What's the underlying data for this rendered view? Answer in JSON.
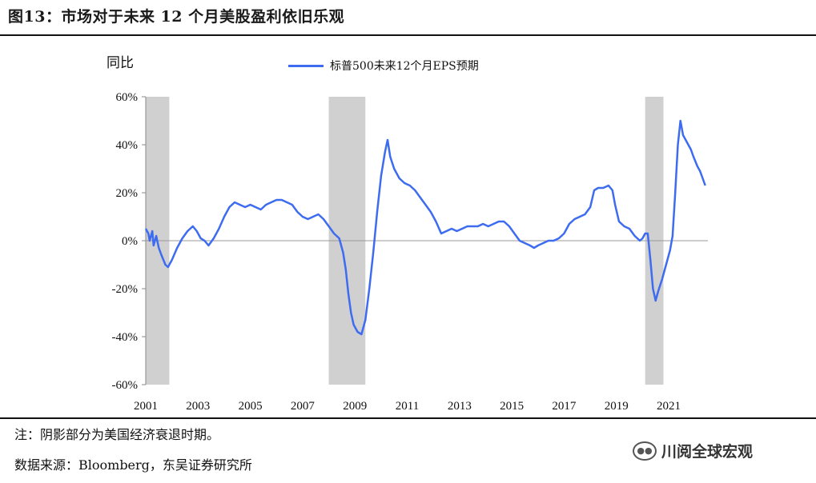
{
  "figure": {
    "title": "图13：市场对于未来 12 个月美股盈利依旧乐观",
    "note": "注：阴影部分为美国经济衰退时期。",
    "source": "数据来源：Bloomberg，东吴证券研究所",
    "watermark": "川阅全球宏观",
    "watermark_icon": "wechat-icon"
  },
  "chart_data": {
    "type": "line",
    "ylabel": "同比",
    "xlabel": "",
    "ylim": [
      -60,
      60
    ],
    "xlim": [
      2001,
      2022.5
    ],
    "yticks": [
      "60%",
      "40%",
      "20%",
      "0%",
      "-20%",
      "-40%",
      "-60%"
    ],
    "ytick_values": [
      60,
      40,
      20,
      0,
      -20,
      -40,
      -60
    ],
    "xticks": [
      "2001",
      "2003",
      "2005",
      "2007",
      "2009",
      "2011",
      "2013",
      "2015",
      "2017",
      "2019",
      "2021"
    ],
    "xtick_values": [
      2001,
      2003,
      2005,
      2007,
      2009,
      2011,
      2013,
      2015,
      2017,
      2019,
      2021
    ],
    "grid": false,
    "legend_position": "top",
    "recession_shading": [
      [
        2001.0,
        2001.9
      ],
      [
        2008.0,
        2009.4
      ],
      [
        2020.1,
        2020.8
      ]
    ],
    "series": [
      {
        "name": "标普500未来12个月EPS预期",
        "color": "#3d6cf0",
        "points": [
          [
            2001.0,
            5
          ],
          [
            2001.1,
            3
          ],
          [
            2001.15,
            0
          ],
          [
            2001.25,
            4
          ],
          [
            2001.3,
            -2
          ],
          [
            2001.4,
            2
          ],
          [
            2001.5,
            -3
          ],
          [
            2001.6,
            -6
          ],
          [
            2001.75,
            -10
          ],
          [
            2001.85,
            -11
          ],
          [
            2002.0,
            -8
          ],
          [
            2002.2,
            -3
          ],
          [
            2002.4,
            1
          ],
          [
            2002.6,
            4
          ],
          [
            2002.8,
            6
          ],
          [
            2002.95,
            4
          ],
          [
            2003.1,
            1
          ],
          [
            2003.25,
            0
          ],
          [
            2003.4,
            -2
          ],
          [
            2003.6,
            1
          ],
          [
            2003.8,
            5
          ],
          [
            2004.0,
            10
          ],
          [
            2004.2,
            14
          ],
          [
            2004.4,
            16
          ],
          [
            2004.6,
            15
          ],
          [
            2004.8,
            14
          ],
          [
            2005.0,
            15
          ],
          [
            2005.2,
            14
          ],
          [
            2005.4,
            13
          ],
          [
            2005.6,
            15
          ],
          [
            2005.8,
            16
          ],
          [
            2006.0,
            17
          ],
          [
            2006.2,
            17
          ],
          [
            2006.4,
            16
          ],
          [
            2006.6,
            15
          ],
          [
            2006.8,
            12
          ],
          [
            2007.0,
            10
          ],
          [
            2007.2,
            9
          ],
          [
            2007.4,
            10
          ],
          [
            2007.6,
            11
          ],
          [
            2007.8,
            9
          ],
          [
            2008.0,
            6
          ],
          [
            2008.2,
            3
          ],
          [
            2008.4,
            1
          ],
          [
            2008.55,
            -5
          ],
          [
            2008.65,
            -12
          ],
          [
            2008.75,
            -22
          ],
          [
            2008.85,
            -30
          ],
          [
            2008.95,
            -35
          ],
          [
            2009.1,
            -38
          ],
          [
            2009.25,
            -39
          ],
          [
            2009.4,
            -33
          ],
          [
            2009.55,
            -20
          ],
          [
            2009.7,
            -5
          ],
          [
            2009.85,
            12
          ],
          [
            2010.0,
            27
          ],
          [
            2010.15,
            37
          ],
          [
            2010.25,
            42
          ],
          [
            2010.35,
            35
          ],
          [
            2010.5,
            30
          ],
          [
            2010.7,
            26
          ],
          [
            2010.9,
            24
          ],
          [
            2011.1,
            23
          ],
          [
            2011.3,
            21
          ],
          [
            2011.5,
            18
          ],
          [
            2011.7,
            15
          ],
          [
            2011.9,
            12
          ],
          [
            2012.1,
            8
          ],
          [
            2012.3,
            3
          ],
          [
            2012.5,
            4
          ],
          [
            2012.7,
            5
          ],
          [
            2012.9,
            4
          ],
          [
            2013.1,
            5
          ],
          [
            2013.3,
            6
          ],
          [
            2013.5,
            6
          ],
          [
            2013.7,
            6
          ],
          [
            2013.9,
            7
          ],
          [
            2014.1,
            6
          ],
          [
            2014.3,
            7
          ],
          [
            2014.5,
            8
          ],
          [
            2014.7,
            8
          ],
          [
            2014.9,
            6
          ],
          [
            2015.1,
            3
          ],
          [
            2015.3,
            0
          ],
          [
            2015.5,
            -1
          ],
          [
            2015.7,
            -2
          ],
          [
            2015.85,
            -3
          ],
          [
            2016.0,
            -2
          ],
          [
            2016.2,
            -1
          ],
          [
            2016.4,
            0
          ],
          [
            2016.6,
            0
          ],
          [
            2016.8,
            1
          ],
          [
            2017.0,
            3
          ],
          [
            2017.2,
            7
          ],
          [
            2017.4,
            9
          ],
          [
            2017.6,
            10
          ],
          [
            2017.8,
            11
          ],
          [
            2018.0,
            14
          ],
          [
            2018.15,
            21
          ],
          [
            2018.3,
            22
          ],
          [
            2018.5,
            22
          ],
          [
            2018.7,
            23
          ],
          [
            2018.85,
            21
          ],
          [
            2018.95,
            15
          ],
          [
            2019.1,
            8
          ],
          [
            2019.3,
            6
          ],
          [
            2019.5,
            5
          ],
          [
            2019.7,
            2
          ],
          [
            2019.9,
            0
          ],
          [
            2020.0,
            1
          ],
          [
            2020.1,
            3
          ],
          [
            2020.2,
            3
          ],
          [
            2020.3,
            -8
          ],
          [
            2020.4,
            -20
          ],
          [
            2020.5,
            -25
          ],
          [
            2020.6,
            -21
          ],
          [
            2020.75,
            -16
          ],
          [
            2020.9,
            -10
          ],
          [
            2021.05,
            -4
          ],
          [
            2021.15,
            2
          ],
          [
            2021.25,
            20
          ],
          [
            2021.35,
            40
          ],
          [
            2021.45,
            50
          ],
          [
            2021.55,
            44
          ],
          [
            2021.7,
            41
          ],
          [
            2021.85,
            38
          ],
          [
            2021.95,
            35
          ],
          [
            2022.1,
            31
          ],
          [
            2022.2,
            29
          ],
          [
            2022.3,
            26
          ],
          [
            2022.4,
            23
          ]
        ]
      }
    ]
  }
}
